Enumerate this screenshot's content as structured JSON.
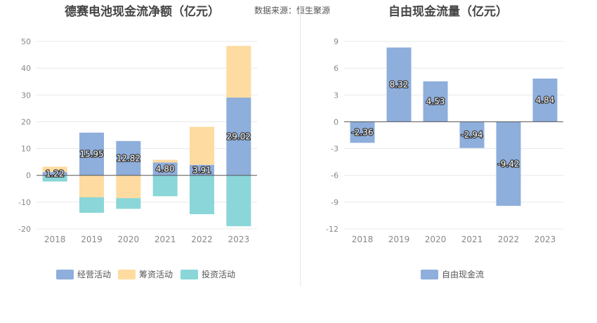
{
  "source_label": "数据来源：恒生聚源",
  "chart_data": [
    {
      "type": "bar",
      "stacked": true,
      "title": "德赛电池现金流净额（亿元）",
      "categories": [
        "2018",
        "2019",
        "2020",
        "2021",
        "2022",
        "2023"
      ],
      "ylim": [
        -20,
        50
      ],
      "yticks": [
        -20,
        -10,
        0,
        10,
        20,
        30,
        40,
        50
      ],
      "grid": true,
      "legend_position": "bottom",
      "series": [
        {
          "name": "经营活动",
          "color": "#8eaedc",
          "values": [
            1.22,
            15.95,
            12.82,
            4.8,
            3.91,
            29.02
          ],
          "labels": [
            "1.22",
            "15.95",
            "12.82",
            "4.80",
            "3.91",
            "29.02"
          ]
        },
        {
          "name": "筹资活动",
          "color": "#fedba0",
          "values": [
            2.0,
            -8.2,
            -8.5,
            1.0,
            14.2,
            19.3
          ]
        },
        {
          "name": "投资活动",
          "color": "#8ad6d8",
          "values": [
            -2.3,
            -5.8,
            -4.0,
            -7.8,
            -14.5,
            -19.0
          ]
        }
      ]
    },
    {
      "type": "bar",
      "title": "自由现金流量（亿元）",
      "categories": [
        "2018",
        "2019",
        "2020",
        "2021",
        "2022",
        "2023"
      ],
      "ylim": [
        -12,
        9
      ],
      "yticks": [
        -12,
        -9,
        -6,
        -3,
        0,
        3,
        6,
        9
      ],
      "grid": true,
      "legend_position": "bottom",
      "series": [
        {
          "name": "自由现金流",
          "color": "#8eaedc",
          "values": [
            -2.36,
            8.32,
            4.53,
            -2.94,
            -9.42,
            4.84
          ],
          "labels": [
            "-2.36",
            "8.32",
            "4.53",
            "-2.94",
            "-9.42",
            "4.84"
          ]
        }
      ]
    }
  ]
}
